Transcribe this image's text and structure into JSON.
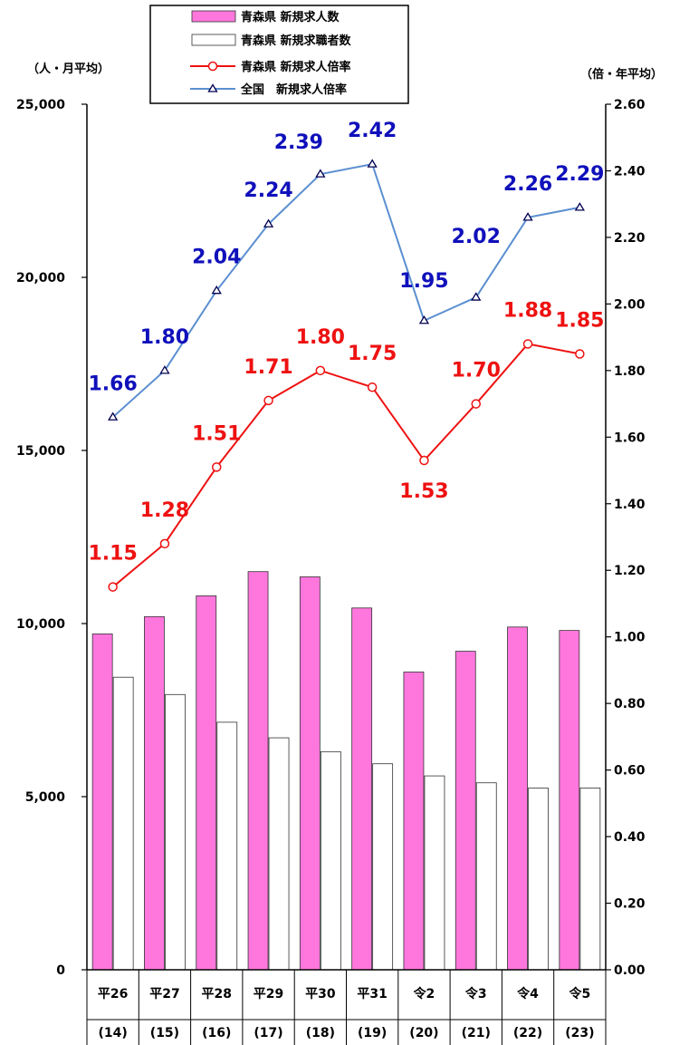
{
  "chart_data": {
    "type": "bar",
    "left_axis_unit": "（人・月平均）",
    "right_axis_unit": "（倍・年平均）",
    "left_ylim": [
      0,
      25000
    ],
    "right_ylim": [
      0,
      2.6
    ],
    "left_ticks": [
      "0",
      "5,000",
      "10,000",
      "15,000",
      "20,000",
      "25,000"
    ],
    "right_ticks": [
      "0.00",
      "0.20",
      "0.40",
      "0.60",
      "0.80",
      "1.00",
      "1.20",
      "1.40",
      "1.60",
      "1.80",
      "2.00",
      "2.20",
      "2.40",
      "2.60"
    ],
    "categories": [
      "平26",
      "平27",
      "平28",
      "平29",
      "平30",
      "平31",
      "令2",
      "令3",
      "令4",
      "令5"
    ],
    "categories_sub": [
      "(14)",
      "(15)",
      "(16)",
      "(17)",
      "(18)",
      "(19)",
      "(20)",
      "(21)",
      "(22)",
      "(23)"
    ],
    "series": [
      {
        "name": "青森県 新規求人数",
        "kind": "bar",
        "axis": "left",
        "color": "#ff77dd",
        "values": [
          9700,
          10200,
          10800,
          11500,
          11350,
          10450,
          8600,
          9200,
          9900,
          9800
        ]
      },
      {
        "name": "青森県 新規求職者数",
        "kind": "bar",
        "axis": "left",
        "color": "#ffffff",
        "values": [
          8450,
          7950,
          7150,
          6700,
          6300,
          5950,
          5600,
          5400,
          5250,
          5250
        ]
      },
      {
        "name": "青森県 新規求人倍率",
        "kind": "line",
        "axis": "right",
        "color": "#ee1111",
        "values": [
          1.15,
          1.28,
          1.51,
          1.71,
          1.8,
          1.75,
          1.53,
          1.7,
          1.88,
          1.85
        ],
        "labels": [
          "1.15",
          "1.28",
          "1.51",
          "1.71",
          "1.80",
          "1.75",
          "1.53",
          "1.70",
          "1.88",
          "1.85"
        ]
      },
      {
        "name": "全国　新規求人倍率",
        "kind": "line",
        "axis": "right",
        "color": "#5b8fd0",
        "label_color": "#1010bb",
        "values": [
          1.66,
          1.8,
          2.04,
          2.24,
          2.39,
          2.42,
          1.95,
          2.02,
          2.26,
          2.29
        ],
        "labels": [
          "1.66",
          "1.80",
          "2.04",
          "2.24",
          "2.39",
          "2.42",
          "1.95",
          "2.02",
          "2.26",
          "2.29"
        ]
      }
    ],
    "legend": {
      "placement": "top-center"
    },
    "grid": false
  }
}
